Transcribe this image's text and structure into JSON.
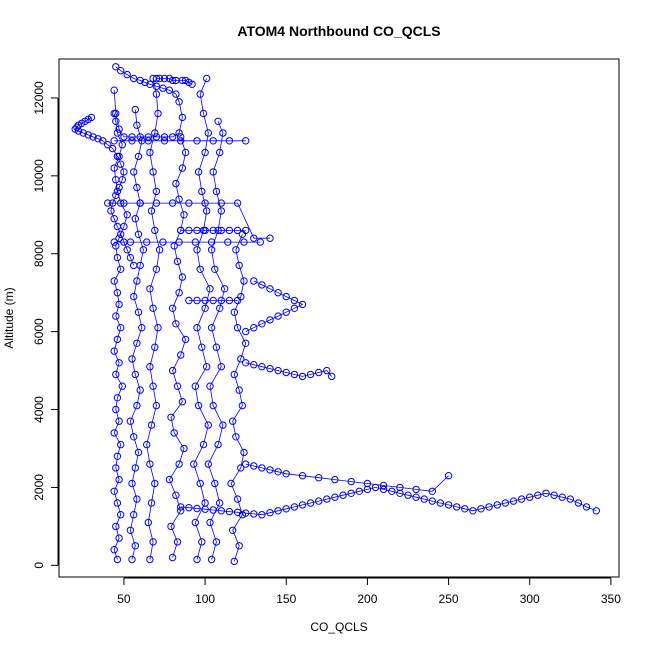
{
  "chart_data": {
    "type": "scatter",
    "title": "ATOM4 Northbound CO_QCLS",
    "xlabel": "CO_QCLS",
    "ylabel": "Altitude (m)",
    "xlim": [
      10,
      355
    ],
    "ylim": [
      -300,
      13000
    ],
    "xticks": [
      50,
      100,
      150,
      200,
      250,
      300,
      350
    ],
    "yticks": [
      0,
      2000,
      4000,
      6000,
      8000,
      10000,
      12000
    ],
    "grid": false,
    "legend": "none",
    "marker": "open-circle",
    "connect_points": true,
    "color": "#0000ff",
    "series": [
      {
        "x": [
          46,
          44,
          47,
          45,
          48,
          46,
          44,
          47,
          45,
          46,
          48,
          44,
          47,
          45,
          46,
          49,
          45,
          47,
          44,
          46,
          48,
          45,
          47,
          46,
          44,
          48,
          46,
          45,
          47,
          50,
          52,
          48,
          46,
          45,
          44,
          47,
          49,
          46,
          45,
          44
        ],
        "y": [
          150,
          400,
          700,
          1000,
          1300,
          1600,
          1900,
          2200,
          2500,
          2800,
          3100,
          3400,
          3700,
          4000,
          4300,
          4600,
          4900,
          5200,
          5500,
          5800,
          6100,
          6400,
          6700,
          7000,
          7300,
          7600,
          7900,
          8200,
          8400,
          8700,
          9000,
          9300,
          9600,
          9900,
          10200,
          10500,
          10800,
          11100,
          11400,
          11600
        ]
      },
      {
        "x": [
          30,
          28,
          26,
          24,
          22,
          21,
          20,
          22,
          25,
          28,
          31,
          34,
          37,
          40,
          43,
          46,
          48,
          50,
          49,
          47,
          45,
          43,
          42,
          44,
          46,
          48,
          50,
          52,
          54,
          56
        ],
        "y": [
          11500,
          11450,
          11400,
          11350,
          11300,
          11250,
          11200,
          11150,
          11100,
          11050,
          11000,
          10950,
          10900,
          10800,
          10700,
          10500,
          10300,
          10100,
          9900,
          9700,
          9500,
          9300,
          9100,
          8900,
          8700,
          8500,
          8300,
          8100,
          7900,
          7700
        ]
      },
      {
        "x": [
          55,
          57,
          54,
          56,
          58,
          55,
          57,
          59,
          56,
          54,
          58,
          60,
          57,
          55,
          58,
          61,
          59,
          56,
          58,
          60,
          62,
          59,
          57,
          60,
          58,
          56,
          59,
          61,
          58,
          57
        ],
        "y": [
          150,
          500,
          900,
          1300,
          1700,
          2100,
          2500,
          2900,
          3300,
          3700,
          4100,
          4500,
          4900,
          5300,
          5700,
          6100,
          6500,
          6900,
          7300,
          7700,
          8100,
          8500,
          8900,
          9300,
          9700,
          10100,
          10500,
          10900,
          11300,
          11700
        ]
      },
      {
        "x": [
          66,
          68,
          65,
          67,
          69,
          66,
          64,
          67,
          70,
          68,
          66,
          69,
          71,
          68,
          66,
          70,
          72,
          69,
          67,
          70,
          68,
          66,
          69,
          71,
          70,
          68
        ],
        "y": [
          150,
          600,
          1100,
          1600,
          2100,
          2600,
          3100,
          3600,
          4100,
          4600,
          5100,
          5600,
          6100,
          6600,
          7100,
          7600,
          8100,
          8600,
          9100,
          9600,
          10100,
          10600,
          11100,
          11600,
          12100,
          12500
        ]
      },
      {
        "x": [
          80,
          83,
          79,
          85,
          82,
          78,
          84,
          87,
          81,
          79,
          86,
          83,
          80,
          85,
          88,
          82,
          80,
          84,
          86,
          83,
          81,
          85,
          87,
          84,
          82,
          86,
          88,
          85
        ],
        "y": [
          200,
          600,
          1000,
          1400,
          1800,
          2200,
          2600,
          3000,
          3400,
          3800,
          4200,
          4600,
          5000,
          5400,
          5800,
          6200,
          6600,
          7000,
          7400,
          7800,
          8200,
          8600,
          9000,
          9400,
          9800,
          10200,
          10600,
          11000
        ]
      },
      {
        "x": [
          95,
          98,
          94,
          100,
          97,
          93,
          99,
          102,
          96,
          94,
          101,
          98,
          95,
          100,
          103,
          97,
          95,
          99,
          101,
          98,
          96,
          100,
          102,
          99,
          97,
          101
        ],
        "y": [
          150,
          600,
          1100,
          1600,
          2100,
          2600,
          3100,
          3600,
          4100,
          4600,
          5100,
          5600,
          6100,
          6600,
          7100,
          7600,
          8100,
          8600,
          9100,
          9600,
          10100,
          10600,
          11100,
          11600,
          12100,
          12500
        ]
      },
      {
        "x": [
          104,
          107,
          103,
          109,
          106,
          102,
          108,
          111,
          105,
          103,
          110,
          107,
          104,
          109,
          112,
          106,
          104,
          108,
          110,
          107,
          105,
          109,
          111,
          108
        ],
        "y": [
          150,
          600,
          1100,
          1600,
          2100,
          2600,
          3100,
          3600,
          4100,
          4600,
          5100,
          5600,
          6100,
          6600,
          7100,
          7600,
          8100,
          8600,
          9100,
          9600,
          10100,
          10600,
          11100,
          11400
        ]
      },
      {
        "x": [
          118,
          121,
          117,
          123,
          120,
          116,
          122,
          124,
          119,
          117,
          123,
          121,
          118,
          122,
          125,
          120,
          118,
          122,
          124,
          121,
          119,
          123
        ],
        "y": [
          100,
          500,
          900,
          1300,
          1700,
          2100,
          2500,
          2900,
          3300,
          3700,
          4100,
          4500,
          4900,
          5300,
          5700,
          6100,
          6500,
          6900,
          7300,
          7700,
          8100,
          8500
        ]
      },
      {
        "x": [
          45,
          48,
          52,
          56,
          60,
          63,
          66,
          70,
          74,
          78,
          82,
          84,
          86,
          84,
          80,
          75,
          70,
          65,
          60,
          55,
          50,
          47,
          45,
          44
        ],
        "y": [
          12800,
          12700,
          12600,
          12500,
          12450,
          12400,
          12350,
          12300,
          12250,
          12200,
          12100,
          11900,
          11500,
          11100,
          11000,
          11000,
          11000,
          11000,
          11000,
          11000,
          11000,
          11200,
          11600,
          12200
        ]
      },
      {
        "x": [
          85,
          90,
          95,
          100,
          105,
          110,
          115,
          120,
          125,
          130,
          135,
          140,
          145,
          150,
          155,
          160,
          165,
          170,
          175,
          180,
          185,
          190,
          195,
          200,
          205,
          210,
          215,
          220,
          225,
          230,
          235,
          240,
          245,
          250,
          255,
          260,
          265,
          270,
          275,
          280,
          285,
          290,
          295,
          300,
          305,
          310,
          315,
          320,
          325,
          330,
          335,
          341
        ],
        "y": [
          1500,
          1480,
          1460,
          1440,
          1420,
          1400,
          1380,
          1360,
          1340,
          1320,
          1300,
          1350,
          1400,
          1450,
          1500,
          1550,
          1600,
          1650,
          1700,
          1750,
          1800,
          1850,
          1900,
          1950,
          2000,
          1950,
          1900,
          1850,
          1800,
          1750,
          1700,
          1650,
          1600,
          1550,
          1500,
          1450,
          1400,
          1450,
          1500,
          1550,
          1600,
          1650,
          1700,
          1750,
          1800,
          1850,
          1800,
          1750,
          1700,
          1600,
          1500,
          1400
        ]
      },
      {
        "x": [
          125,
          130,
          135,
          140,
          145,
          150,
          160,
          170,
          180,
          190,
          200,
          210,
          220,
          230,
          240,
          250
        ],
        "y": [
          2600,
          2550,
          2500,
          2450,
          2400,
          2350,
          2300,
          2250,
          2200,
          2150,
          2100,
          2050,
          2000,
          1950,
          1900,
          2300
        ]
      },
      {
        "x": [
          125,
          130,
          135,
          140,
          145,
          150,
          155,
          160,
          165,
          170,
          175,
          178
        ],
        "y": [
          5200,
          5150,
          5100,
          5050,
          5000,
          4950,
          4900,
          4850,
          4900,
          4950,
          5000,
          4850
        ]
      },
      {
        "x": [
          125,
          130,
          135,
          140,
          145,
          150,
          155,
          160,
          155,
          150,
          145,
          140,
          135,
          130
        ],
        "y": [
          6000,
          6100,
          6200,
          6300,
          6400,
          6500,
          6600,
          6700,
          6800,
          6900,
          7000,
          7100,
          7200,
          7300
        ]
      },
      {
        "x": [
          40,
          50,
          60,
          70,
          80,
          90,
          100,
          110,
          120,
          130,
          140
        ],
        "y": [
          9300,
          9300,
          9300,
          9300,
          9300,
          9300,
          9300,
          9300,
          9300,
          8400,
          8400
        ]
      },
      {
        "x": [
          44,
          54,
          64,
          74,
          84,
          94,
          104,
          114,
          124,
          134
        ],
        "y": [
          8300,
          8300,
          8300,
          8300,
          8300,
          8300,
          8300,
          8300,
          8300,
          8300
        ]
      },
      {
        "x": [
          44,
          55,
          65,
          75,
          85,
          95,
          105,
          115,
          125
        ],
        "y": [
          10900,
          10900,
          10900,
          10900,
          10900,
          10900,
          10900,
          10900,
          10900
        ]
      },
      {
        "x": [
          70,
          72,
          75,
          78,
          80,
          82,
          86,
          88,
          90,
          92
        ],
        "y": [
          12500,
          12500,
          12500,
          12500,
          12450,
          12450,
          12450,
          12450,
          12400,
          12350
        ]
      },
      {
        "x": [
          85,
          90,
          95,
          100,
          105,
          110,
          115,
          120,
          125
        ],
        "y": [
          8600,
          8600,
          8600,
          8600,
          8600,
          8600,
          8600,
          8600,
          8600
        ]
      },
      {
        "x": [
          90,
          95,
          100,
          105,
          110,
          115,
          120
        ],
        "y": [
          6800,
          6800,
          6800,
          6800,
          6800,
          6800,
          6800
        ]
      }
    ]
  }
}
